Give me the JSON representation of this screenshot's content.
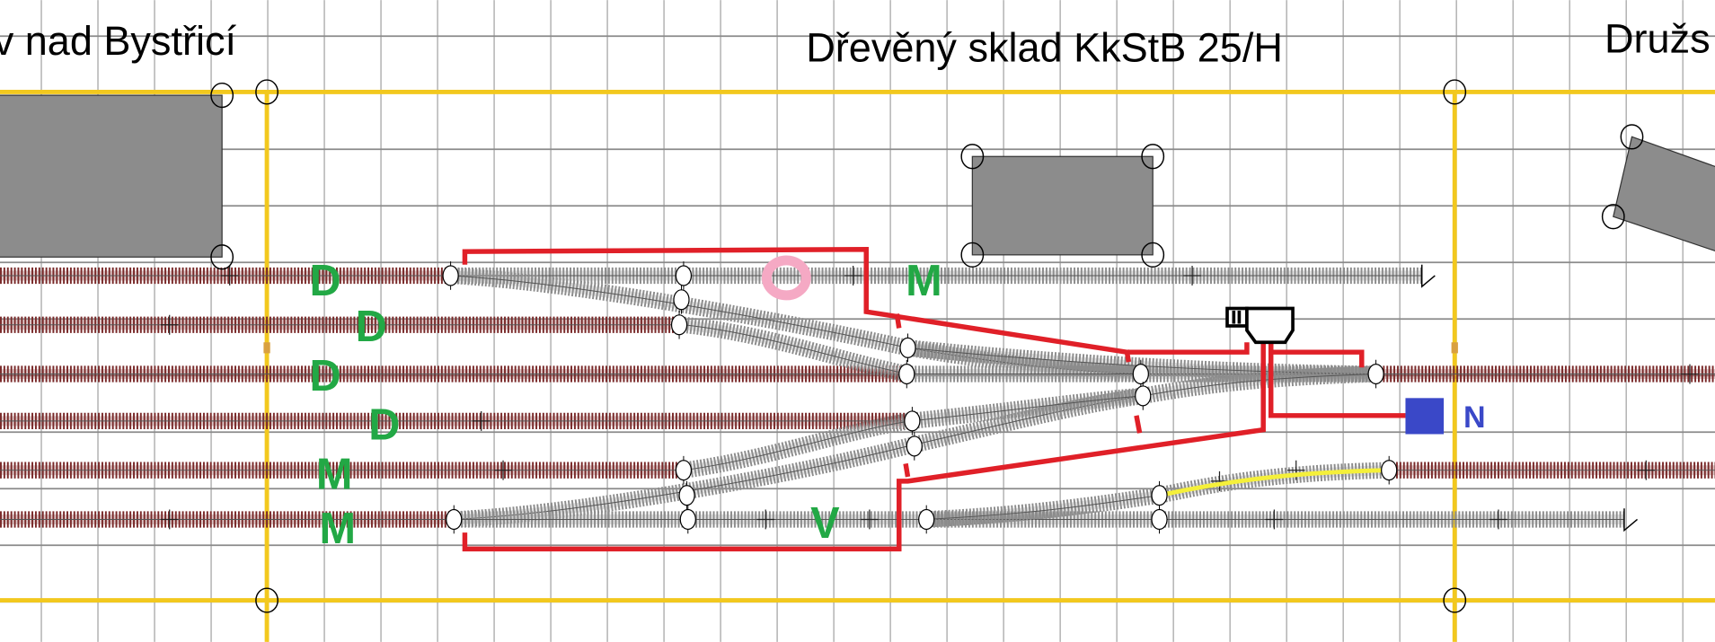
{
  "titles": {
    "left": "v nad Bystřicí",
    "center": "Dřevěný sklad KkStB 25/H",
    "right": "Družs"
  },
  "track_labels": [
    "D",
    "D",
    "D",
    "D",
    "M",
    "M",
    "M",
    "V"
  ],
  "marker_labels": {
    "pink_ring": "O",
    "blue_square": "N"
  },
  "colors": {
    "grid": "#8a8a8a",
    "baseboard_edge": "#f2c81e",
    "mainline_track": "#7a2a2a",
    "yard_track": "#8c8c8c",
    "wiring": "#e02028",
    "building": "#8c8c8c",
    "label_green": "#22a845",
    "label_blue": "#3a48c8",
    "pink_ring": "#f5a9c4",
    "highlight_track": "#f5f03a"
  },
  "icons": [
    "signal-box-icon",
    "anchor-circle-icon",
    "buffer-stop-icon"
  ]
}
